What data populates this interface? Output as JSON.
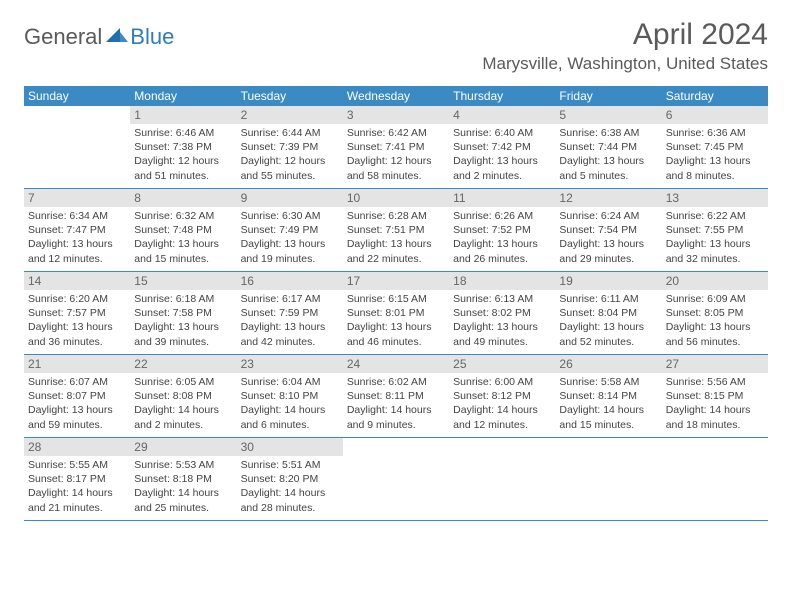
{
  "logo": {
    "general": "General",
    "blue": "Blue"
  },
  "title": "April 2024",
  "location": "Marysville, Washington, United States",
  "colors": {
    "header_bg": "#3b8ac4",
    "header_text": "#ffffff",
    "daynum_bg": "#e4e4e4",
    "border": "#3b8ac4",
    "text": "#444444",
    "logo_gray": "#5a5a5a",
    "logo_blue": "#2f7bbf"
  },
  "dayHeaders": [
    "Sunday",
    "Monday",
    "Tuesday",
    "Wednesday",
    "Thursday",
    "Friday",
    "Saturday"
  ],
  "weeks": [
    [
      {
        "n": "",
        "sr": "",
        "ss": "",
        "dl": ""
      },
      {
        "n": "1",
        "sr": "6:46 AM",
        "ss": "7:38 PM",
        "dl": "12 hours and 51 minutes."
      },
      {
        "n": "2",
        "sr": "6:44 AM",
        "ss": "7:39 PM",
        "dl": "12 hours and 55 minutes."
      },
      {
        "n": "3",
        "sr": "6:42 AM",
        "ss": "7:41 PM",
        "dl": "12 hours and 58 minutes."
      },
      {
        "n": "4",
        "sr": "6:40 AM",
        "ss": "7:42 PM",
        "dl": "13 hours and 2 minutes."
      },
      {
        "n": "5",
        "sr": "6:38 AM",
        "ss": "7:44 PM",
        "dl": "13 hours and 5 minutes."
      },
      {
        "n": "6",
        "sr": "6:36 AM",
        "ss": "7:45 PM",
        "dl": "13 hours and 8 minutes."
      }
    ],
    [
      {
        "n": "7",
        "sr": "6:34 AM",
        "ss": "7:47 PM",
        "dl": "13 hours and 12 minutes."
      },
      {
        "n": "8",
        "sr": "6:32 AM",
        "ss": "7:48 PM",
        "dl": "13 hours and 15 minutes."
      },
      {
        "n": "9",
        "sr": "6:30 AM",
        "ss": "7:49 PM",
        "dl": "13 hours and 19 minutes."
      },
      {
        "n": "10",
        "sr": "6:28 AM",
        "ss": "7:51 PM",
        "dl": "13 hours and 22 minutes."
      },
      {
        "n": "11",
        "sr": "6:26 AM",
        "ss": "7:52 PM",
        "dl": "13 hours and 26 minutes."
      },
      {
        "n": "12",
        "sr": "6:24 AM",
        "ss": "7:54 PM",
        "dl": "13 hours and 29 minutes."
      },
      {
        "n": "13",
        "sr": "6:22 AM",
        "ss": "7:55 PM",
        "dl": "13 hours and 32 minutes."
      }
    ],
    [
      {
        "n": "14",
        "sr": "6:20 AM",
        "ss": "7:57 PM",
        "dl": "13 hours and 36 minutes."
      },
      {
        "n": "15",
        "sr": "6:18 AM",
        "ss": "7:58 PM",
        "dl": "13 hours and 39 minutes."
      },
      {
        "n": "16",
        "sr": "6:17 AM",
        "ss": "7:59 PM",
        "dl": "13 hours and 42 minutes."
      },
      {
        "n": "17",
        "sr": "6:15 AM",
        "ss": "8:01 PM",
        "dl": "13 hours and 46 minutes."
      },
      {
        "n": "18",
        "sr": "6:13 AM",
        "ss": "8:02 PM",
        "dl": "13 hours and 49 minutes."
      },
      {
        "n": "19",
        "sr": "6:11 AM",
        "ss": "8:04 PM",
        "dl": "13 hours and 52 minutes."
      },
      {
        "n": "20",
        "sr": "6:09 AM",
        "ss": "8:05 PM",
        "dl": "13 hours and 56 minutes."
      }
    ],
    [
      {
        "n": "21",
        "sr": "6:07 AM",
        "ss": "8:07 PM",
        "dl": "13 hours and 59 minutes."
      },
      {
        "n": "22",
        "sr": "6:05 AM",
        "ss": "8:08 PM",
        "dl": "14 hours and 2 minutes."
      },
      {
        "n": "23",
        "sr": "6:04 AM",
        "ss": "8:10 PM",
        "dl": "14 hours and 6 minutes."
      },
      {
        "n": "24",
        "sr": "6:02 AM",
        "ss": "8:11 PM",
        "dl": "14 hours and 9 minutes."
      },
      {
        "n": "25",
        "sr": "6:00 AM",
        "ss": "8:12 PM",
        "dl": "14 hours and 12 minutes."
      },
      {
        "n": "26",
        "sr": "5:58 AM",
        "ss": "8:14 PM",
        "dl": "14 hours and 15 minutes."
      },
      {
        "n": "27",
        "sr": "5:56 AM",
        "ss": "8:15 PM",
        "dl": "14 hours and 18 minutes."
      }
    ],
    [
      {
        "n": "28",
        "sr": "5:55 AM",
        "ss": "8:17 PM",
        "dl": "14 hours and 21 minutes."
      },
      {
        "n": "29",
        "sr": "5:53 AM",
        "ss": "8:18 PM",
        "dl": "14 hours and 25 minutes."
      },
      {
        "n": "30",
        "sr": "5:51 AM",
        "ss": "8:20 PM",
        "dl": "14 hours and 28 minutes."
      },
      {
        "n": "",
        "sr": "",
        "ss": "",
        "dl": ""
      },
      {
        "n": "",
        "sr": "",
        "ss": "",
        "dl": ""
      },
      {
        "n": "",
        "sr": "",
        "ss": "",
        "dl": ""
      },
      {
        "n": "",
        "sr": "",
        "ss": "",
        "dl": ""
      }
    ]
  ],
  "labels": {
    "sunrise": "Sunrise:",
    "sunset": "Sunset:",
    "daylight": "Daylight:"
  }
}
